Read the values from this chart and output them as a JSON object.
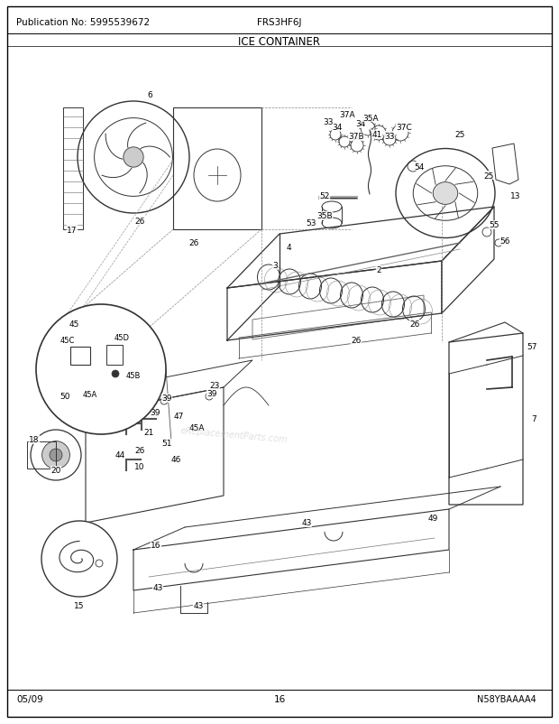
{
  "pub_no": "Publication No: 5995539672",
  "model": "FRS3HF6J",
  "section": "ICE CONTAINER",
  "part_code": "N58YBAAAA4",
  "date": "05/09",
  "page": "16",
  "bg_color": "#ffffff",
  "line_color": "#333333",
  "header_fontsize": 7.5,
  "title_fontsize": 8.5,
  "footer_fontsize": 7.5,
  "label_fontsize": 6.5
}
